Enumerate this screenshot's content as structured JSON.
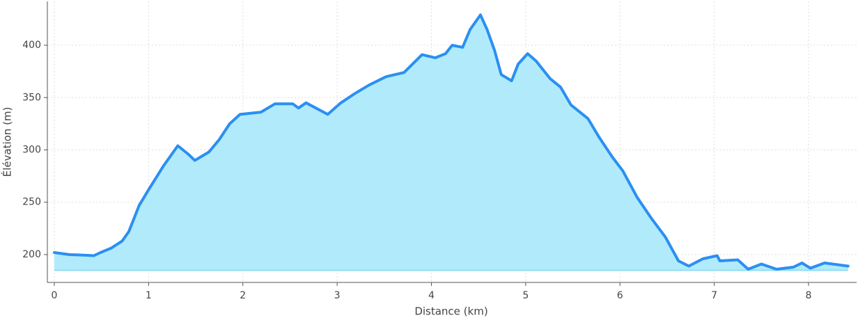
{
  "chart_data": {
    "type": "area",
    "xlabel": "Distance (km)",
    "ylabel": "Élévation (m)",
    "x": [
      0,
      0.16,
      0.31,
      0.42,
      0.49,
      0.6,
      0.72,
      0.79,
      0.9,
      1.0,
      1.16,
      1.31,
      1.42,
      1.49,
      1.64,
      1.75,
      1.86,
      1.97,
      2.19,
      2.34,
      2.53,
      2.59,
      2.67,
      2.9,
      3.04,
      3.19,
      3.34,
      3.52,
      3.71,
      3.9,
      4.04,
      4.15,
      4.22,
      4.33,
      4.41,
      4.52,
      4.59,
      4.67,
      4.74,
      4.85,
      4.92,
      5.02,
      5.11,
      5.26,
      5.37,
      5.48,
      5.66,
      5.78,
      5.92,
      6.03,
      6.18,
      6.33,
      6.48,
      6.62,
      6.73,
      6.88,
      7.03,
      7.06,
      7.25,
      7.36,
      7.5,
      7.66,
      7.84,
      7.93,
      8.02,
      8.17,
      8.42
    ],
    "values": [
      202,
      200,
      199.5,
      199,
      202,
      206,
      213,
      222,
      247,
      262,
      285,
      304,
      296,
      290,
      298,
      310,
      325,
      334,
      336,
      344,
      344,
      340,
      345,
      334,
      345,
      354,
      362,
      370,
      374,
      391,
      388,
      392,
      400,
      398,
      415,
      429,
      415,
      395,
      372,
      366,
      382,
      392,
      385,
      368,
      360,
      343,
      330,
      312,
      293,
      280,
      255,
      235,
      217,
      194,
      189,
      196,
      199,
      194,
      195,
      186,
      191,
      186,
      188,
      192,
      187,
      192,
      189
    ],
    "fill_to": 185,
    "line_color": "#2b8ff2",
    "fill_color": "#b1ebfb",
    "xlim": [
      -0.074,
      8.51
    ],
    "xticks": [
      0,
      1,
      2,
      3,
      4,
      5,
      6,
      7,
      8
    ],
    "ylim": [
      173.4,
      441.9
    ],
    "yticks": [
      200,
      250,
      300,
      350,
      400
    ],
    "grid": true
  }
}
